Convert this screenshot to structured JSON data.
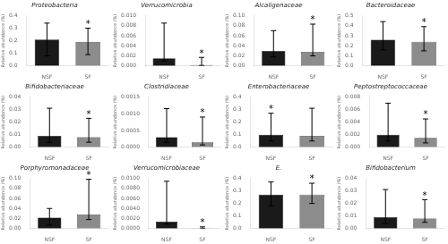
{
  "chart_data": [
    {
      "type": "bar",
      "title": "Proteobacteria",
      "categories": [
        "NSF",
        "SF"
      ],
      "values": [
        0.21,
        0.19
      ],
      "error_low": [
        0.13,
        0.1
      ],
      "error_high": [
        0.13,
        0.11
      ],
      "colors": [
        "#1a1a1a",
        "#8c8c8c"
      ],
      "ylabel": "Relative abundance (%)",
      "ylim": [
        0.0,
        0.4
      ],
      "yticks": [
        {
          "value": 0.0,
          "label": "0.0"
        },
        0.1,
        0.2,
        0.3,
        0.4
      ],
      "annotations": [
        {
          "text": "*",
          "category": "SF"
        }
      ],
      "grid": false
    },
    {
      "type": "bar",
      "title": "Verrucomicrobia",
      "categories": [
        "NSF",
        "SF"
      ],
      "values": [
        0.0015,
        0.0002
      ],
      "error_low": [
        0.0005,
        0.0001
      ],
      "error_high": [
        0.007,
        0.0015
      ],
      "colors": [
        "#1a1a1a",
        "#8c8c8c"
      ],
      "ylabel": "Relative abundance (%)",
      "ylim": [
        0.0,
        0.01
      ],
      "yticks": [
        {
          "value": 0.0,
          "label": "0.000"
        },
        0.002,
        0.004,
        0.006,
        0.008,
        {
          "value": 0.01,
          "label": "0.010"
        }
      ],
      "annotations": [
        {
          "text": "*",
          "category": "SF"
        }
      ],
      "grid": false
    },
    {
      "type": "bar",
      "title": "Alcaligenaceae",
      "categories": [
        "NSF",
        "SF"
      ],
      "values": [
        0.03,
        0.028
      ],
      "error_low": [
        0.012,
        0.008
      ],
      "error_high": [
        0.04,
        0.055
      ],
      "colors": [
        "#1a1a1a",
        "#8c8c8c"
      ],
      "ylabel": "Relative abundance (%)",
      "ylim": [
        0.0,
        0.1
      ],
      "yticks": [
        {
          "value": 0.0,
          "label": "0.00"
        },
        0.02,
        0.04,
        0.06,
        0.08,
        {
          "value": 0.1,
          "label": "0.10"
        }
      ],
      "annotations": [
        {
          "text": "*",
          "category": "SF"
        }
      ],
      "grid": false
    },
    {
      "type": "bar",
      "title": "Bacteroidaceae",
      "categories": [
        "NSF",
        "SF"
      ],
      "values": [
        0.26,
        0.24
      ],
      "error_low": [
        0.1,
        0.09
      ],
      "error_high": [
        0.18,
        0.15
      ],
      "colors": [
        "#1a1a1a",
        "#8c8c8c"
      ],
      "ylabel": "Relative abundance (%)",
      "ylim": [
        0.0,
        0.5
      ],
      "yticks": [
        {
          "value": 0.0,
          "label": "0.0"
        },
        0.1,
        0.2,
        0.3,
        0.4,
        0.5
      ],
      "annotations": [
        {
          "text": "*",
          "category": "SF"
        }
      ],
      "grid": false
    },
    {
      "type": "bar",
      "title": "Bifidobacteriaceae",
      "categories": [
        "NSF",
        "SF"
      ],
      "values": [
        0.009,
        0.008
      ],
      "error_low": [
        0.005,
        0.004
      ],
      "error_high": [
        0.022,
        0.015
      ],
      "colors": [
        "#1a1a1a",
        "#8c8c8c"
      ],
      "ylabel": "Relative abundance (%)",
      "ylim": [
        0.0,
        0.04
      ],
      "yticks": [
        {
          "value": 0.0,
          "label": "0.00"
        },
        0.01,
        0.02,
        0.03,
        0.04
      ],
      "annotations": [
        {
          "text": "*",
          "category": "SF"
        }
      ],
      "grid": false
    },
    {
      "type": "bar",
      "title": "Clostridiaceae",
      "categories": [
        "NSF",
        "SF"
      ],
      "values": [
        0.0003,
        0.00015
      ],
      "error_low": [
        0.00015,
        8e-05
      ],
      "error_high": [
        0.00085,
        0.00075
      ],
      "colors": [
        "#1a1a1a",
        "#8c8c8c"
      ],
      "ylabel": "Relative abundance (%)",
      "ylim": [
        0.0,
        0.0015
      ],
      "yticks": [
        {
          "value": 0.0,
          "label": "0.0000"
        },
        0.0005,
        {
          "value": 0.001,
          "label": "0.0010"
        },
        0.0015
      ],
      "annotations": [
        {
          "text": "*",
          "category": "SF"
        }
      ],
      "grid": false
    },
    {
      "type": "bar",
      "title": "Enterobacteriaceae",
      "categories": [
        "NSF",
        "SF"
      ],
      "values": [
        0.1,
        0.09
      ],
      "error_low": [
        0.05,
        0.04
      ],
      "error_high": [
        0.17,
        0.22
      ],
      "colors": [
        "#1a1a1a",
        "#8c8c8c"
      ],
      "ylabel": "Relative abundance (%)",
      "ylim": [
        0.0,
        0.4
      ],
      "yticks": [
        {
          "value": 0.0,
          "label": "0.0"
        },
        0.1,
        0.2,
        0.3,
        0.4
      ],
      "annotations": [
        {
          "text": "*",
          "category": "NSF"
        }
      ],
      "grid": false
    },
    {
      "type": "bar",
      "title": "Peptostreptococcaceae",
      "categories": [
        "NSF",
        "SF"
      ],
      "values": [
        0.002,
        0.0015
      ],
      "error_low": [
        0.001,
        0.0008
      ],
      "error_high": [
        0.005,
        0.003
      ],
      "colors": [
        "#1a1a1a",
        "#8c8c8c"
      ],
      "ylabel": "Relative abundance (%)",
      "ylim": [
        0.0,
        0.008
      ],
      "yticks": [
        {
          "value": 0.0,
          "label": "0.000"
        },
        0.002,
        0.004,
        0.006,
        0.008
      ],
      "annotations": [
        {
          "text": "*",
          "category": "SF"
        }
      ],
      "grid": false
    },
    {
      "type": "bar",
      "title": "Porphyromonadaceae",
      "categories": [
        "NSF",
        "SF"
      ],
      "values": [
        0.022,
        0.028
      ],
      "error_low": [
        0.015,
        0.01
      ],
      "error_high": [
        0.018,
        0.07
      ],
      "colors": [
        "#1a1a1a",
        "#8c8c8c"
      ],
      "ylabel": "Relative abundance (%)",
      "ylim": [
        0.0,
        0.1
      ],
      "yticks": [
        {
          "value": 0.0,
          "label": "0.00"
        },
        0.02,
        0.04,
        0.06,
        0.08,
        {
          "value": 0.1,
          "label": "0.10"
        }
      ],
      "annotations": [
        {
          "text": "*",
          "category": "SF"
        }
      ],
      "grid": false
    },
    {
      "type": "bar",
      "title": "Verrucomicrobiaceae",
      "categories": [
        "NSF",
        "SF"
      ],
      "values": [
        0.0014,
        5e-05
      ],
      "error_low": [
        0.0005,
        3e-05
      ],
      "error_high": [
        0.008,
        0.0003
      ],
      "colors": [
        "#1a1a1a",
        "#8c8c8c"
      ],
      "ylabel": "Relative abundance (%)",
      "ylim": [
        0.0,
        0.01
      ],
      "yticks": [
        {
          "value": 0.0,
          "label": "0.0000"
        },
        {
          "value": 0.002,
          "label": "0.0020"
        },
        {
          "value": 0.004,
          "label": "0.0040"
        },
        {
          "value": 0.006,
          "label": "0.0060"
        },
        {
          "value": 0.008,
          "label": "0.0080"
        },
        {
          "value": 0.01,
          "label": "0.0100"
        }
      ],
      "annotations": [
        {
          "text": "*",
          "category": "SF"
        }
      ],
      "grid": false
    },
    {
      "type": "bar",
      "title": "E.",
      "categories": [
        "NSF",
        "SF"
      ],
      "values": [
        0.27,
        0.27
      ],
      "error_low": [
        0.09,
        0.07
      ],
      "error_high": [
        0.1,
        0.09
      ],
      "colors": [
        "#1a1a1a",
        "#8c8c8c"
      ],
      "ylabel": "Relative abundance (%)",
      "ylim": [
        0.0,
        0.4
      ],
      "yticks": [
        {
          "value": 0.0,
          "label": "0.0"
        },
        0.1,
        0.2,
        0.3,
        0.4
      ],
      "annotations": [
        {
          "text": "*",
          "category": "SF"
        }
      ],
      "grid": false
    },
    {
      "type": "bar",
      "title": "Bifidobacterium",
      "categories": [
        "NSF",
        "SF"
      ],
      "values": [
        0.009,
        0.008
      ],
      "error_low": [
        0.005,
        0.003
      ],
      "error_high": [
        0.022,
        0.015
      ],
      "colors": [
        "#1a1a1a",
        "#8c8c8c"
      ],
      "ylabel": "Relative abundance (%)",
      "ylim": [
        0.0,
        0.04
      ],
      "yticks": [
        {
          "value": 0.0,
          "label": "0.00"
        },
        0.01,
        0.02,
        0.03,
        0.04
      ],
      "annotations": [
        {
          "text": "*",
          "category": "SF"
        }
      ],
      "grid": false
    }
  ]
}
